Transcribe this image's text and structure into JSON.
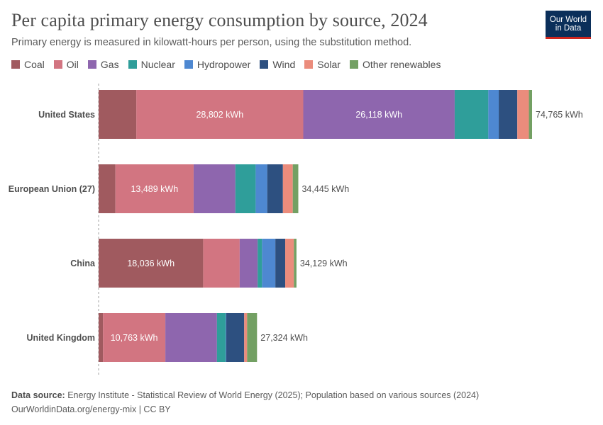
{
  "header": {
    "title": "Per capita primary energy consumption by source, 2024",
    "subtitle": "Primary energy is measured in kilowatt-hours per person, using the substitution method.",
    "logo_line1": "Our World",
    "logo_line2": "in Data"
  },
  "colors": {
    "Coal": "#a05a5f",
    "Oil": "#d27581",
    "Gas": "#8e66ae",
    "Nuclear": "#2f9e9a",
    "Hydropower": "#4e88d1",
    "Wind": "#2d5080",
    "Solar": "#eb8c7c",
    "Other renewables": "#73a063"
  },
  "chart_data": {
    "type": "bar",
    "orientation": "horizontal",
    "stacked": true,
    "title": "Per capita primary energy consumption by source, 2024",
    "subtitle": "Primary energy is measured in kilowatt-hours per person, using the substitution method.",
    "unit": "kWh",
    "legend_position": "top-left",
    "categories": [
      "United States",
      "European Union (27)",
      "China",
      "United Kingdom"
    ],
    "totals": [
      74765,
      34445,
      34129,
      27324
    ],
    "total_labels": [
      "74,765 kWh",
      "34,445 kWh",
      "34,129 kWh",
      "27,324 kWh"
    ],
    "series": [
      {
        "name": "Coal",
        "values": [
          6500,
          2900,
          18036,
          750
        ],
        "value_labels": [
          "",
          "",
          "18,036 kWh",
          ""
        ]
      },
      {
        "name": "Oil",
        "values": [
          28802,
          13489,
          6300,
          10763
        ],
        "value_labels": [
          "28,802 kWh",
          "13,489 kWh",
          "",
          "10,763 kWh"
        ]
      },
      {
        "name": "Gas",
        "values": [
          26118,
          7200,
          3100,
          8900
        ],
        "value_labels": [
          "26,118 kWh",
          "",
          "",
          ""
        ]
      },
      {
        "name": "Nuclear",
        "values": [
          5800,
          3500,
          750,
          1500
        ],
        "value_labels": [
          "",
          "",
          "",
          ""
        ]
      },
      {
        "name": "Hydropower",
        "values": [
          1800,
          2000,
          2300,
          100
        ],
        "value_labels": [
          "",
          "",
          "",
          ""
        ]
      },
      {
        "name": "Wind",
        "values": [
          3200,
          2700,
          1700,
          3100
        ],
        "value_labels": [
          "",
          "",
          "",
          ""
        ]
      },
      {
        "name": "Solar",
        "values": [
          2000,
          1700,
          1500,
          500
        ],
        "value_labels": [
          "",
          "",
          "",
          ""
        ]
      },
      {
        "name": "Other renewables",
        "values": [
          545,
          956,
          443,
          1711
        ],
        "value_labels": [
          "",
          "",
          "",
          ""
        ]
      }
    ]
  },
  "footer": {
    "source_label": "Data source:",
    "source_text": "Energy Institute - Statistical Review of World Energy (2025); Population based on various sources (2024)",
    "url_license": "OurWorldinData.org/energy-mix | CC BY"
  }
}
